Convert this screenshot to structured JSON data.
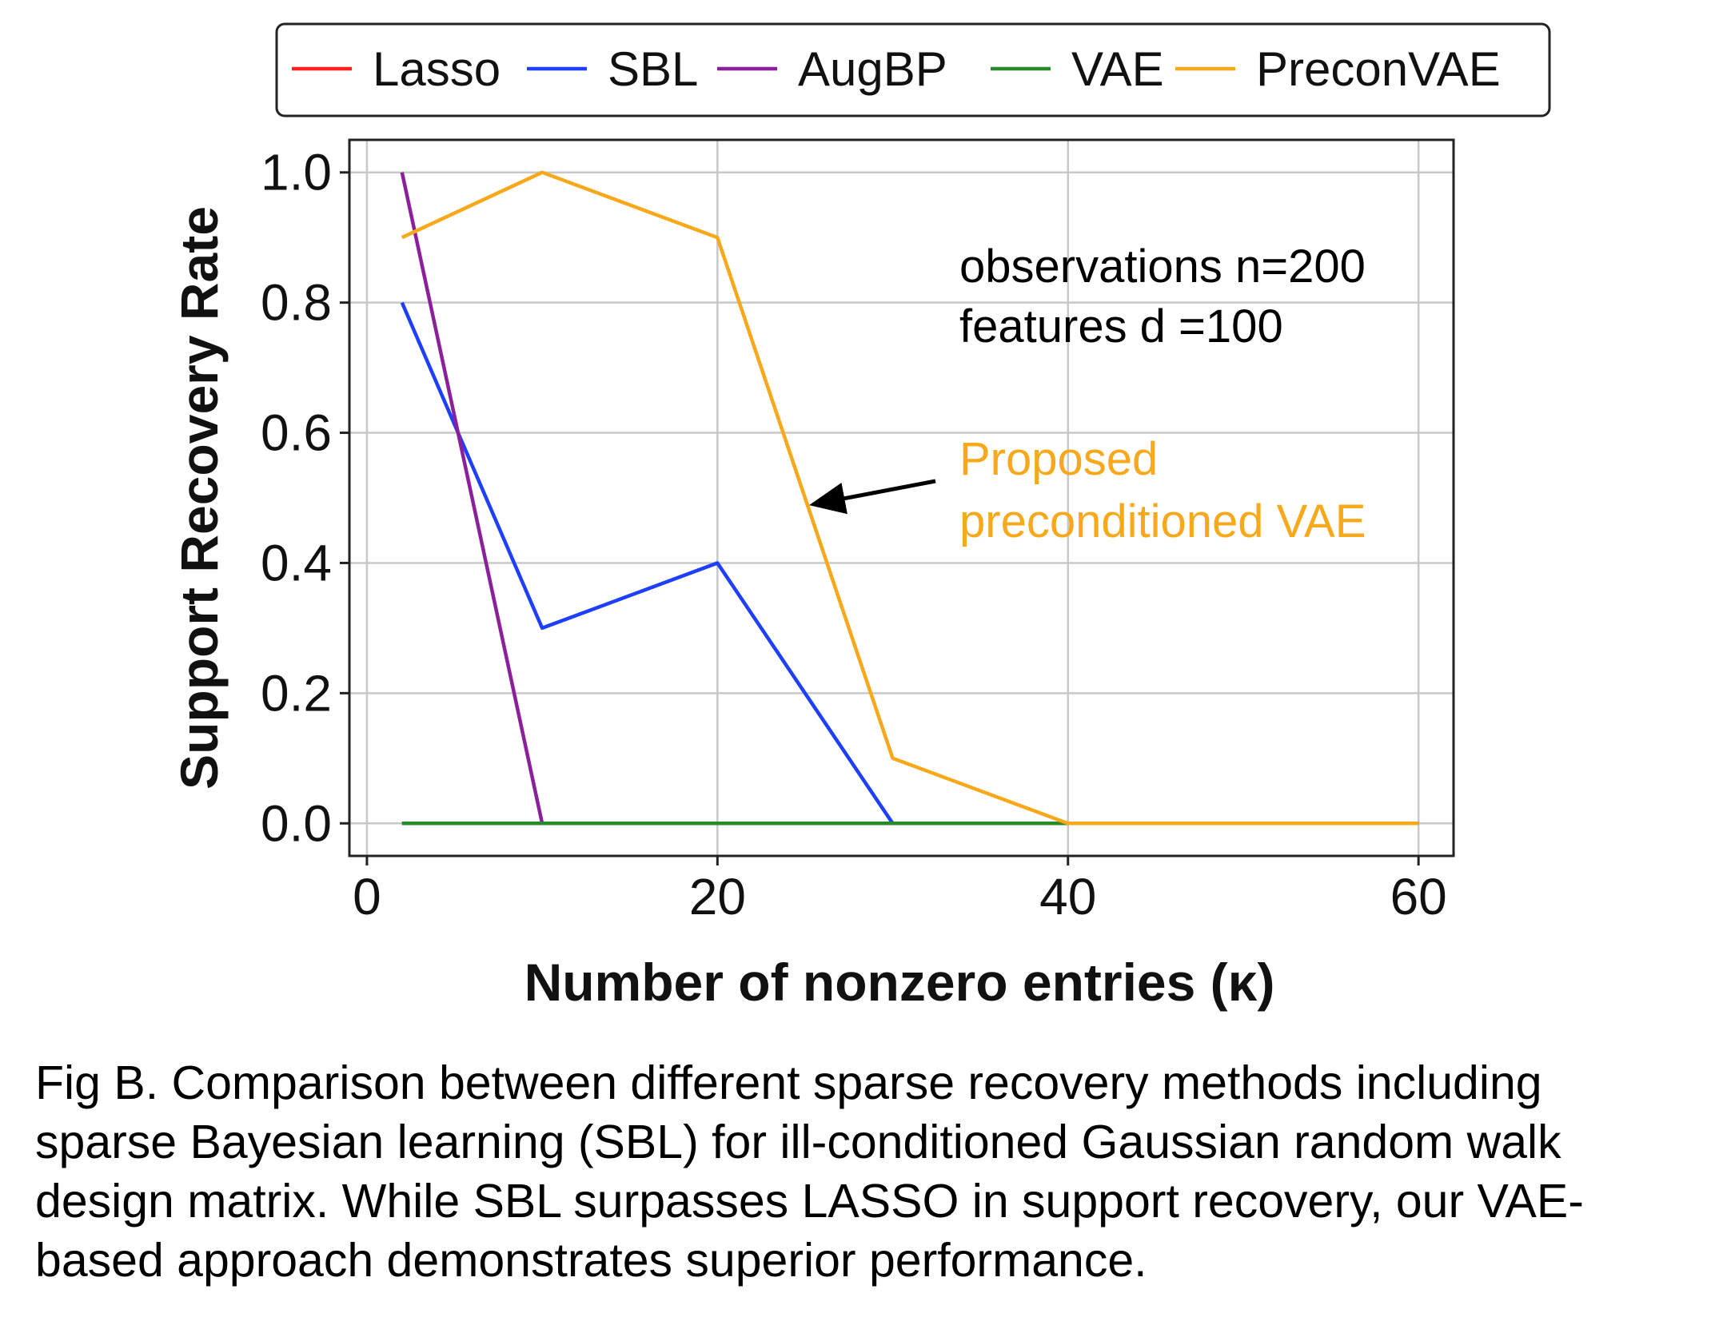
{
  "chart_data": {
    "type": "line",
    "xlabel": "Number of nonzero entries (κ)",
    "ylabel": "Support Recovery Rate",
    "xlim": [
      -1,
      62
    ],
    "ylim": [
      -0.05,
      1.05
    ],
    "x_ticks": [
      "0",
      "20",
      "40",
      "60"
    ],
    "x_tick_values": [
      0,
      20,
      40,
      60
    ],
    "y_ticks": [
      "0.0",
      "0.2",
      "0.4",
      "0.6",
      "0.8",
      "1.0"
    ],
    "y_tick_values": [
      0,
      0.2,
      0.4,
      0.6,
      0.8,
      1.0
    ],
    "grid": true,
    "legend_position": "top",
    "series": [
      {
        "name": "Lasso",
        "color": "#ff2020",
        "x": [
          2,
          10,
          20,
          30,
          40,
          60
        ],
        "values": [
          0,
          0,
          0,
          0,
          0,
          0
        ]
      },
      {
        "name": "SBL",
        "color": "#1f3fff",
        "x": [
          2,
          10,
          20,
          30,
          40,
          60
        ],
        "values": [
          0.8,
          0.3,
          0.4,
          0,
          0,
          0
        ]
      },
      {
        "name": "AugBP",
        "color": "#8b1f9c",
        "x": [
          2,
          10,
          20,
          30,
          40,
          60
        ],
        "values": [
          1.0,
          0,
          0,
          0,
          0,
          0
        ]
      },
      {
        "name": "VAE",
        "color": "#2a8a2a",
        "x": [
          2,
          10,
          20,
          30,
          40,
          60
        ],
        "values": [
          0,
          0,
          0,
          0,
          0,
          0
        ]
      },
      {
        "name": "PreconVAE",
        "color": "#f7a81b",
        "x": [
          2,
          10,
          20,
          30,
          40,
          60
        ],
        "values": [
          0.9,
          1.0,
          0.9,
          0.1,
          0,
          0
        ]
      }
    ],
    "annotations": {
      "settings_line1": "observations n=200",
      "settings_line2": "features d =100",
      "proposed_line1": "Proposed",
      "proposed_line2": "preconditioned VAE",
      "proposed_color": "#f7a81b",
      "arrow_target": {
        "x": 25,
        "y": 0.49
      }
    }
  },
  "caption": "Fig B. Comparison between different sparse recovery methods including sparse Bayesian learning (SBL) for ill-conditioned Gaussian random walk design matrix. While SBL surpasses LASSO in support recovery, our VAE-based approach demonstrates superior performance."
}
